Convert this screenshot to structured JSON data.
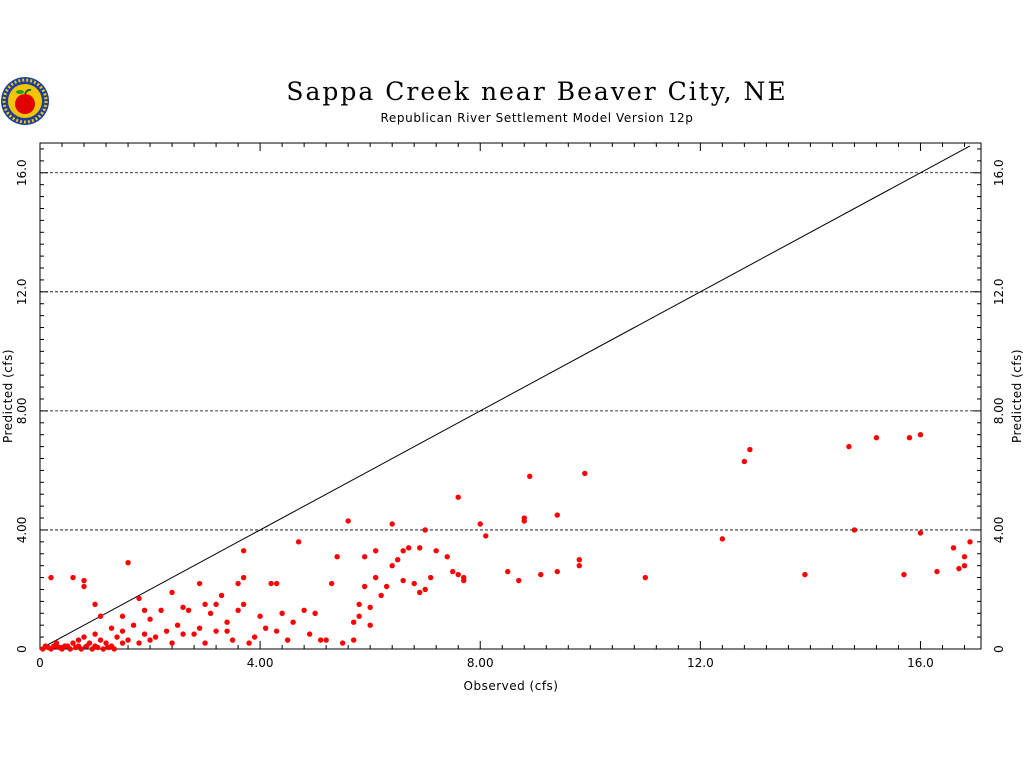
{
  "chart_data": {
    "type": "scatter",
    "title": "Sappa Creek near Beaver City, NE",
    "subtitle": "Republican River Settlement Model Version 12p",
    "xlabel": "Observed (cfs)",
    "ylabel": "Predicted (cfs)",
    "xlim": [
      0,
      17.1
    ],
    "ylim": [
      0,
      17.0
    ],
    "x_ticks": [
      0,
      4,
      8,
      12,
      16
    ],
    "x_tick_labels": [
      "0",
      "4.00",
      "8.00",
      "12.0",
      "16.0"
    ],
    "y_ticks": [
      0,
      4,
      8,
      12,
      16
    ],
    "y_tick_labels": [
      "0",
      "4.00",
      "8.00",
      "12.0",
      "16.0"
    ],
    "grid": "horizontal dashed lines at 4, 8, 12, 16",
    "reference_line": {
      "type": "1:1",
      "from": [
        0,
        0
      ],
      "to": [
        16.9,
        16.9
      ]
    },
    "marker_color": "#ff0000",
    "line_color": "#000000",
    "logo": "apple-logo-icon",
    "series": [
      {
        "points": [
          [
            0.2,
            2.4
          ],
          [
            0.6,
            2.4
          ],
          [
            0.8,
            2.3
          ],
          [
            0.8,
            2.1
          ],
          [
            1.0,
            1.5
          ],
          [
            1.1,
            1.1
          ],
          [
            1.3,
            0.7
          ],
          [
            1.5,
            1.1
          ],
          [
            1.5,
            0.6
          ],
          [
            1.6,
            2.9
          ],
          [
            1.6,
            0.3
          ],
          [
            1.8,
            1.7
          ],
          [
            1.9,
            1.3
          ],
          [
            2.0,
            1.0
          ],
          [
            2.1,
            0.4
          ],
          [
            2.2,
            1.3
          ],
          [
            2.4,
            1.9
          ],
          [
            2.5,
            0.8
          ],
          [
            2.6,
            1.4
          ],
          [
            2.7,
            1.3
          ],
          [
            2.8,
            0.5
          ],
          [
            2.9,
            2.2
          ],
          [
            3.0,
            1.5
          ],
          [
            3.1,
            1.2
          ],
          [
            3.2,
            1.5
          ],
          [
            3.3,
            1.8
          ],
          [
            3.4,
            0.9
          ],
          [
            3.5,
            0.3
          ],
          [
            3.6,
            1.3
          ],
          [
            3.6,
            2.2
          ],
          [
            3.7,
            2.4
          ],
          [
            3.7,
            3.3
          ],
          [
            3.7,
            1.5
          ],
          [
            3.8,
            0.2
          ],
          [
            4.0,
            1.1
          ],
          [
            4.1,
            0.7
          ],
          [
            4.2,
            2.2
          ],
          [
            4.3,
            2.2
          ],
          [
            4.4,
            1.2
          ],
          [
            4.6,
            0.9
          ],
          [
            4.7,
            3.6
          ],
          [
            4.8,
            1.3
          ],
          [
            4.9,
            0.5
          ],
          [
            5.0,
            1.2
          ],
          [
            5.2,
            0.3
          ],
          [
            5.3,
            2.2
          ],
          [
            5.4,
            3.1
          ],
          [
            5.5,
            0.2
          ],
          [
            5.6,
            4.3
          ],
          [
            5.7,
            0.9
          ],
          [
            5.7,
            0.3
          ],
          [
            5.8,
            1.1
          ],
          [
            5.8,
            1.5
          ],
          [
            5.9,
            2.1
          ],
          [
            5.9,
            3.1
          ],
          [
            6.0,
            1.4
          ],
          [
            6.0,
            0.8
          ],
          [
            6.1,
            2.4
          ],
          [
            6.1,
            3.3
          ],
          [
            6.2,
            1.8
          ],
          [
            6.3,
            2.1
          ],
          [
            6.4,
            2.8
          ],
          [
            6.4,
            4.2
          ],
          [
            6.5,
            3.0
          ],
          [
            6.6,
            2.3
          ],
          [
            6.6,
            3.3
          ],
          [
            6.7,
            3.4
          ],
          [
            6.8,
            2.2
          ],
          [
            6.9,
            3.4
          ],
          [
            6.9,
            1.9
          ],
          [
            7.0,
            2.0
          ],
          [
            7.0,
            4.0
          ],
          [
            7.1,
            2.4
          ],
          [
            7.2,
            3.3
          ],
          [
            7.4,
            3.1
          ],
          [
            7.5,
            2.6
          ],
          [
            7.6,
            5.1
          ],
          [
            7.6,
            2.5
          ],
          [
            7.7,
            2.3
          ],
          [
            7.7,
            2.4
          ],
          [
            8.0,
            4.2
          ],
          [
            8.1,
            3.8
          ],
          [
            8.5,
            2.6
          ],
          [
            8.7,
            2.3
          ],
          [
            8.8,
            4.4
          ],
          [
            8.8,
            4.3
          ],
          [
            8.9,
            5.8
          ],
          [
            9.1,
            2.5
          ],
          [
            9.4,
            4.5
          ],
          [
            9.4,
            2.6
          ],
          [
            9.8,
            3.0
          ],
          [
            9.8,
            2.8
          ],
          [
            9.9,
            5.9
          ],
          [
            11.0,
            2.4
          ],
          [
            12.4,
            3.7
          ],
          [
            12.8,
            6.3
          ],
          [
            12.9,
            6.7
          ],
          [
            13.9,
            2.5
          ],
          [
            14.7,
            6.8
          ],
          [
            14.8,
            4.0
          ],
          [
            15.2,
            7.1
          ],
          [
            15.7,
            2.5
          ],
          [
            15.8,
            7.1
          ],
          [
            16.0,
            7.2
          ],
          [
            16.0,
            3.9
          ],
          [
            16.3,
            2.6
          ],
          [
            16.6,
            3.4
          ],
          [
            16.7,
            2.7
          ],
          [
            16.8,
            3.1
          ],
          [
            16.8,
            2.8
          ],
          [
            16.9,
            3.6
          ],
          [
            0.1,
            0.1
          ],
          [
            0.2,
            0.0
          ],
          [
            0.3,
            0.2
          ],
          [
            0.3,
            0.1
          ],
          [
            0.4,
            0.0
          ],
          [
            0.5,
            0.1
          ],
          [
            0.6,
            0.2
          ],
          [
            0.7,
            0.3
          ],
          [
            0.7,
            0.1
          ],
          [
            0.8,
            0.4
          ],
          [
            0.9,
            0.2
          ],
          [
            1.0,
            0.5
          ],
          [
            1.0,
            0.1
          ],
          [
            1.1,
            0.3
          ],
          [
            1.2,
            0.2
          ],
          [
            1.3,
            0.1
          ],
          [
            1.4,
            0.4
          ],
          [
            1.5,
            0.2
          ],
          [
            1.7,
            0.8
          ],
          [
            1.8,
            0.2
          ],
          [
            1.9,
            0.5
          ],
          [
            2.0,
            0.3
          ],
          [
            2.3,
            0.6
          ],
          [
            2.4,
            0.2
          ],
          [
            2.6,
            0.5
          ],
          [
            2.9,
            0.7
          ],
          [
            3.0,
            0.2
          ],
          [
            3.2,
            0.6
          ],
          [
            3.4,
            0.6
          ],
          [
            3.9,
            0.4
          ],
          [
            4.3,
            0.6
          ],
          [
            4.5,
            0.3
          ],
          [
            5.1,
            0.3
          ],
          [
            0.05,
            0.0
          ],
          [
            0.15,
            0.05
          ],
          [
            0.25,
            0.1
          ],
          [
            0.35,
            0.05
          ],
          [
            0.45,
            0.1
          ],
          [
            0.55,
            0.0
          ],
          [
            0.65,
            0.05
          ],
          [
            0.75,
            0.0
          ],
          [
            0.85,
            0.1
          ],
          [
            0.95,
            0.0
          ],
          [
            1.05,
            0.05
          ],
          [
            1.15,
            0.0
          ],
          [
            1.25,
            0.05
          ],
          [
            1.35,
            0.0
          ]
        ]
      }
    ]
  }
}
